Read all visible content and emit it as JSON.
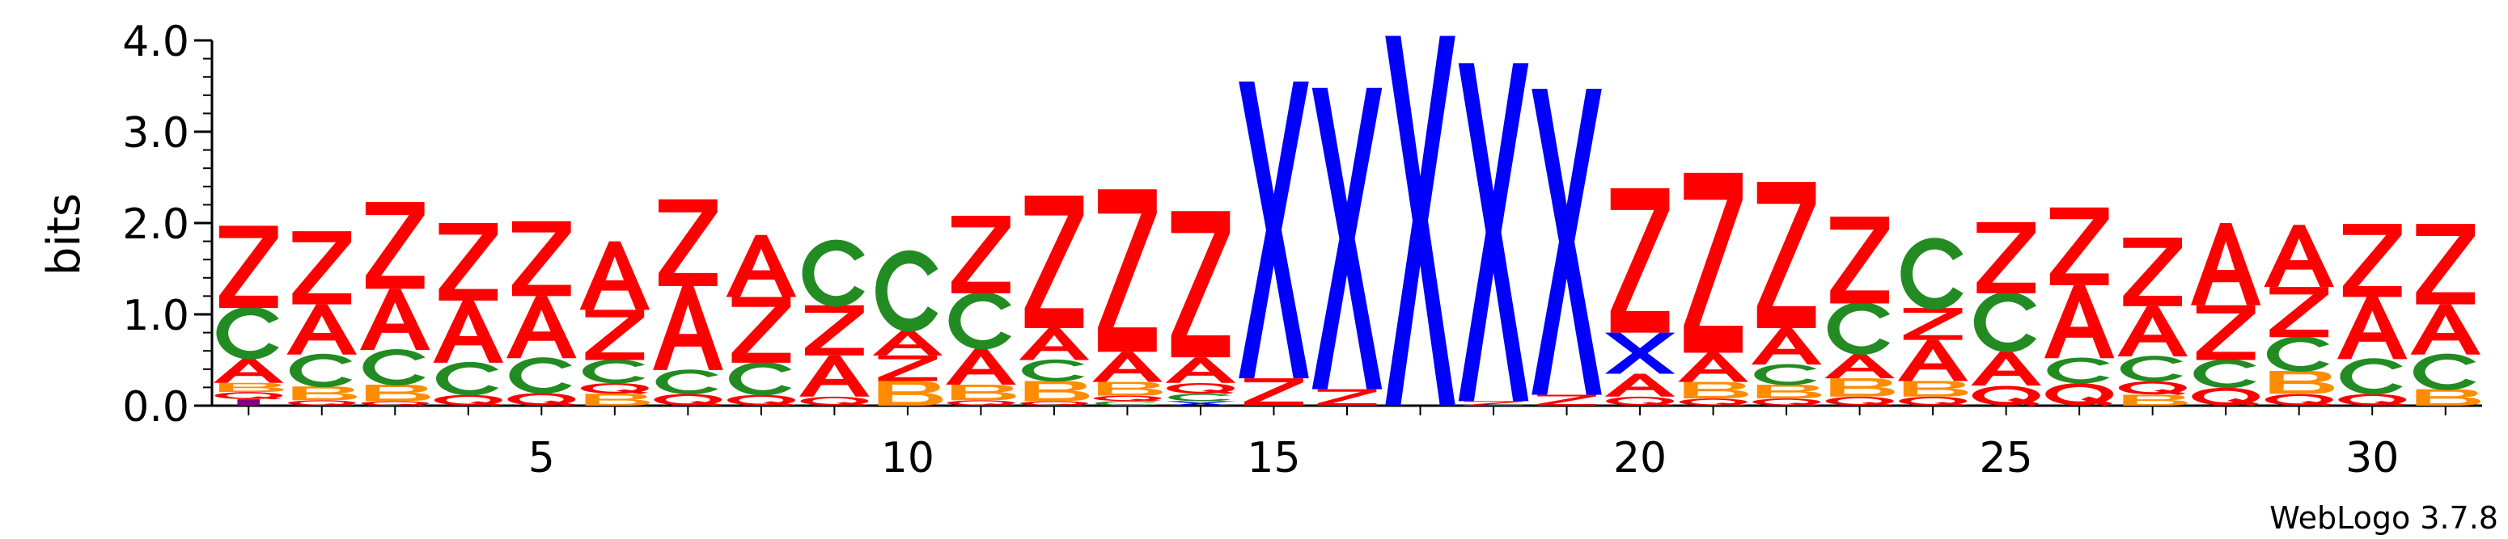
{
  "chart_data": {
    "type": "sequence-logo",
    "ylabel": "bits",
    "ylim": [
      0,
      4.0
    ],
    "y_ticks": [
      {
        "value": 0.0,
        "label": "0.0"
      },
      {
        "value": 1.0,
        "label": "1.0"
      },
      {
        "value": 2.0,
        "label": "2.0"
      },
      {
        "value": 3.0,
        "label": "3.0"
      },
      {
        "value": 4.0,
        "label": "4.0"
      }
    ],
    "x_ticks": [
      {
        "value": 5,
        "label": "5"
      },
      {
        "value": 10,
        "label": "10"
      },
      {
        "value": 15,
        "label": "15"
      },
      {
        "value": 20,
        "label": "20"
      },
      {
        "value": 25,
        "label": "25"
      },
      {
        "value": 30,
        "label": "30"
      }
    ],
    "positions": 31,
    "colors": {
      "Z": "#ff0000",
      "A": "#ff0000",
      "C": "#228b22",
      "X": "#0000ff",
      "B": "#ff8c00",
      "Q": "#ff0000",
      "I": "#800080"
    },
    "stacks": [
      [
        [
          "I",
          0.07
        ],
        [
          "Q",
          0.08
        ],
        [
          "B",
          0.1
        ],
        [
          "A",
          0.27
        ],
        [
          "C",
          0.55
        ],
        [
          "Z",
          0.9
        ]
      ],
      [
        [
          "Q",
          0.06
        ],
        [
          "B",
          0.15
        ],
        [
          "C",
          0.35
        ],
        [
          "A",
          0.55
        ],
        [
          "Z",
          0.8
        ]
      ],
      [
        [
          "Q",
          0.05
        ],
        [
          "B",
          0.18
        ],
        [
          "C",
          0.38
        ],
        [
          "A",
          0.67
        ],
        [
          "Z",
          0.95
        ]
      ],
      [
        [
          "Q",
          0.12
        ],
        [
          "C",
          0.35
        ],
        [
          "A",
          0.68
        ],
        [
          "Z",
          0.85
        ]
      ],
      [
        [
          "Q",
          0.14
        ],
        [
          "C",
          0.38
        ],
        [
          "A",
          0.68
        ],
        [
          "Z",
          0.82
        ]
      ],
      [
        [
          "B",
          0.13
        ],
        [
          "Q",
          0.12
        ],
        [
          "C",
          0.25
        ],
        [
          "Z",
          0.55
        ],
        [
          "A",
          0.75
        ]
      ],
      [
        [
          "Q",
          0.13
        ],
        [
          "C",
          0.26
        ],
        [
          "A",
          0.92
        ],
        [
          "Z",
          0.95
        ]
      ],
      [
        [
          "Q",
          0.12
        ],
        [
          "C",
          0.35
        ],
        [
          "Z",
          0.72
        ],
        [
          "A",
          0.68
        ]
      ],
      [
        [
          "Q",
          0.1
        ],
        [
          "A",
          0.45
        ],
        [
          "Z",
          0.55
        ],
        [
          "C",
          0.7
        ]
      ],
      [
        [
          "B",
          0.27
        ],
        [
          "Z",
          0.28
        ],
        [
          "A",
          0.28
        ],
        [
          "C",
          0.85
        ]
      ],
      [
        [
          "Q",
          0.06
        ],
        [
          "B",
          0.17
        ],
        [
          "A",
          0.4
        ],
        [
          "C",
          0.6
        ],
        [
          "Z",
          0.85
        ]
      ],
      [
        [
          "Q",
          0.05
        ],
        [
          "B",
          0.22
        ],
        [
          "C",
          0.23
        ],
        [
          "A",
          0.35
        ],
        [
          "Z",
          1.45
        ]
      ],
      [
        [
          "C",
          0.05
        ],
        [
          "Q",
          0.06
        ],
        [
          "B",
          0.15
        ],
        [
          "A",
          0.33
        ],
        [
          "Z",
          1.78
        ]
      ],
      [
        [
          "X",
          0.05
        ],
        [
          "C",
          0.08
        ],
        [
          "Q",
          0.12
        ],
        [
          "A",
          0.28
        ],
        [
          "Z",
          1.6
        ]
      ],
      [
        [
          "Z",
          0.3
        ],
        [
          "X",
          3.25
        ]
      ],
      [
        [
          "Z",
          0.18
        ],
        [
          "X",
          3.3
        ]
      ],
      [
        [
          "X",
          4.05
        ]
      ],
      [
        [
          "Z",
          0.05
        ],
        [
          "X",
          3.7
        ]
      ],
      [
        [
          "Z",
          0.12
        ],
        [
          "X",
          3.35
        ]
      ],
      [
        [
          "Q",
          0.1
        ],
        [
          "A",
          0.25
        ],
        [
          "X",
          0.45
        ],
        [
          "Z",
          1.58
        ]
      ],
      [
        [
          "Q",
          0.08
        ],
        [
          "B",
          0.18
        ],
        [
          "A",
          0.32
        ],
        [
          "Z",
          1.97
        ]
      ],
      [
        [
          "Q",
          0.08
        ],
        [
          "B",
          0.15
        ],
        [
          "C",
          0.22
        ],
        [
          "A",
          0.4
        ],
        [
          "Z",
          1.6
        ]
      ],
      [
        [
          "Q",
          0.1
        ],
        [
          "B",
          0.2
        ],
        [
          "A",
          0.27
        ],
        [
          "C",
          0.55
        ],
        [
          "Z",
          0.95
        ]
      ],
      [
        [
          "Q",
          0.1
        ],
        [
          "B",
          0.17
        ],
        [
          "A",
          0.45
        ],
        [
          "Z",
          0.35
        ],
        [
          "C",
          0.75
        ]
      ],
      [
        [
          "Q",
          0.22
        ],
        [
          "A",
          0.38
        ],
        [
          "C",
          0.63
        ],
        [
          "Z",
          0.78
        ]
      ],
      [
        [
          "Q",
          0.25
        ],
        [
          "C",
          0.27
        ],
        [
          "A",
          0.8
        ],
        [
          "Z",
          0.85
        ]
      ],
      [
        [
          "B",
          0.12
        ],
        [
          "Q",
          0.15
        ],
        [
          "C",
          0.27
        ],
        [
          "A",
          0.55
        ],
        [
          "Z",
          0.75
        ]
      ],
      [
        [
          "Q",
          0.2
        ],
        [
          "C",
          0.3
        ],
        [
          "Z",
          0.6
        ],
        [
          "A",
          0.9
        ]
      ],
      [
        [
          "Q",
          0.13
        ],
        [
          "B",
          0.25
        ],
        [
          "C",
          0.37
        ],
        [
          "Z",
          0.55
        ],
        [
          "A",
          0.68
        ]
      ],
      [
        [
          "Q",
          0.13
        ],
        [
          "C",
          0.38
        ],
        [
          "A",
          0.68
        ],
        [
          "Z",
          0.8
        ]
      ],
      [
        [
          "B",
          0.18
        ],
        [
          "C",
          0.38
        ],
        [
          "A",
          0.55
        ],
        [
          "Z",
          0.88
        ]
      ]
    ]
  },
  "footer": {
    "credit": "WebLogo 3.7.8"
  }
}
